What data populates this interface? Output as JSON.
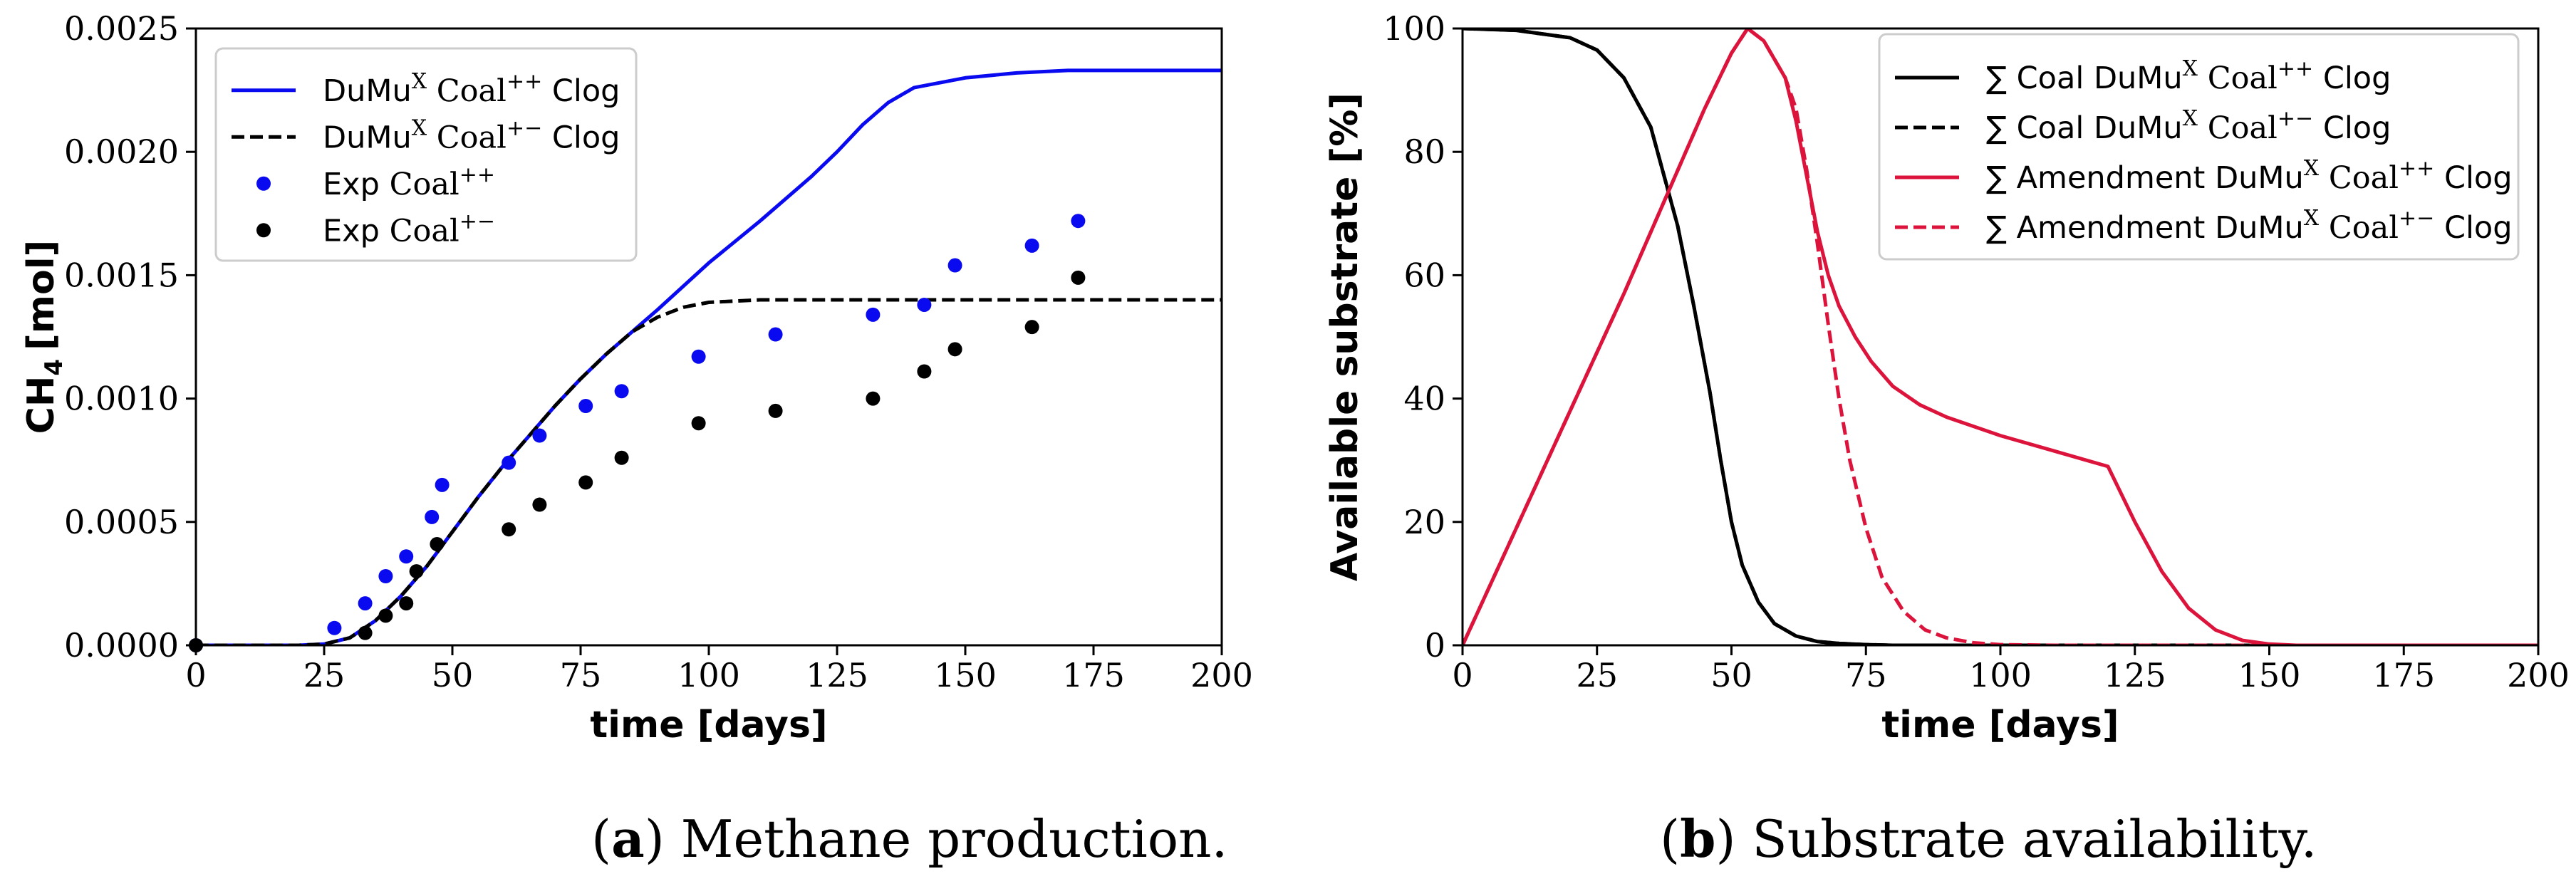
{
  "chart_data": [
    {
      "type": "line+scatter",
      "panel": "a",
      "ylabel": "CH",
      "ylabel_sub": "4",
      "ylabel_unit": "[mol]",
      "xlabel": "time [days]",
      "xlim": [
        0,
        200
      ],
      "ylim": [
        0,
        0.0025
      ],
      "xticks": [
        0,
        25,
        50,
        75,
        100,
        125,
        150,
        175,
        200
      ],
      "yticks": [
        0.0,
        0.0005,
        0.001,
        0.0015,
        0.002,
        0.0025
      ],
      "ytick_labels": [
        "0.0000",
        "0.0005",
        "0.0010",
        "0.0015",
        "0.0020",
        "0.0025"
      ],
      "legend_position": "top-left",
      "series": [
        {
          "name": "DuMu^X Coal^{++} Clog",
          "legend": [
            "DuMu",
            "X",
            " Coal",
            "++",
            " Clog"
          ],
          "kind": "line",
          "style": "solid",
          "color": "#0a0af0",
          "x": [
            0,
            20,
            25,
            30,
            35,
            40,
            45,
            50,
            55,
            60,
            65,
            70,
            75,
            80,
            85,
            90,
            100,
            110,
            120,
            125,
            130,
            135,
            140,
            150,
            160,
            170,
            180,
            190,
            200
          ],
          "y": [
            0,
            0,
            5e-06,
            3e-05,
            0.0001,
            0.0002,
            0.00032,
            0.00046,
            0.0006,
            0.00073,
            0.00085,
            0.00097,
            0.00108,
            0.00118,
            0.00127,
            0.00136,
            0.00155,
            0.00172,
            0.0019,
            0.002,
            0.00211,
            0.0022,
            0.00226,
            0.0023,
            0.00232,
            0.00233,
            0.00233,
            0.00233,
            0.00233
          ]
        },
        {
          "name": "DuMu^X Coal^{+-} Clog",
          "legend": [
            "DuMu",
            "X",
            " Coal",
            "+−",
            " Clog"
          ],
          "kind": "line",
          "style": "dashed",
          "color": "#000000",
          "x": [
            0,
            20,
            25,
            30,
            35,
            40,
            45,
            50,
            55,
            60,
            65,
            70,
            75,
            80,
            85,
            90,
            95,
            100,
            110,
            120,
            140,
            160,
            180,
            200
          ],
          "y": [
            0,
            0,
            5e-06,
            3e-05,
            0.0001,
            0.0002,
            0.00032,
            0.00046,
            0.0006,
            0.00073,
            0.00085,
            0.00097,
            0.00108,
            0.00118,
            0.00127,
            0.00133,
            0.00137,
            0.00139,
            0.0014,
            0.0014,
            0.0014,
            0.0014,
            0.0014,
            0.0014
          ]
        },
        {
          "name": "Exp Coal^{++}",
          "legend": [
            "Exp",
            "",
            " Coal",
            "++",
            ""
          ],
          "kind": "scatter",
          "color": "#0a0af0",
          "x": [
            0,
            27,
            33,
            37,
            41,
            46,
            48,
            61,
            67,
            76,
            83,
            98,
            113,
            132,
            142,
            148,
            163,
            172
          ],
          "y": [
            0,
            7e-05,
            0.00017,
            0.00028,
            0.00036,
            0.00052,
            0.00065,
            0.00074,
            0.00085,
            0.00097,
            0.00103,
            0.00117,
            0.00126,
            0.00134,
            0.00138,
            0.00154,
            0.00162,
            0.00172
          ]
        },
        {
          "name": "Exp Coal^{+-}",
          "legend": [
            "Exp",
            "",
            " Coal",
            "+−",
            ""
          ],
          "kind": "scatter",
          "color": "#000000",
          "x": [
            0,
            33,
            37,
            41,
            43,
            47,
            61,
            67,
            76,
            83,
            98,
            113,
            132,
            142,
            148,
            163,
            172
          ],
          "y": [
            0,
            5e-05,
            0.00012,
            0.00017,
            0.0003,
            0.00041,
            0.00047,
            0.00057,
            0.00066,
            0.00076,
            0.0009,
            0.00095,
            0.001,
            0.00111,
            0.0012,
            0.00129,
            0.00149
          ]
        }
      ]
    },
    {
      "type": "line",
      "panel": "b",
      "ylabel": "Available substrate [%]",
      "xlabel": "time [days]",
      "xlim": [
        0,
        200
      ],
      "ylim": [
        0,
        100
      ],
      "xticks": [
        0,
        25,
        50,
        75,
        100,
        125,
        150,
        175,
        200
      ],
      "yticks": [
        0,
        20,
        40,
        60,
        80,
        100
      ],
      "ytick_labels": [
        "0",
        "20",
        "40",
        "60",
        "80",
        "100"
      ],
      "legend_position": "top-right",
      "series": [
        {
          "name": "∑ Coal DuMu^X Coal^{++} Clog",
          "legend": [
            "∑ Coal DuMu",
            "X",
            " Coal",
            "++",
            " Clog"
          ],
          "kind": "line",
          "style": "solid",
          "color": "#000000",
          "x": [
            0,
            10,
            20,
            25,
            30,
            35,
            40,
            43,
            46,
            48,
            50,
            52,
            55,
            58,
            62,
            66,
            70,
            75,
            80,
            90,
            100,
            200
          ],
          "y": [
            100,
            99.7,
            98.5,
            96.5,
            92,
            84,
            68,
            55,
            41,
            30,
            20,
            13,
            7,
            3.5,
            1.5,
            0.6,
            0.3,
            0.1,
            0,
            0,
            0,
            0
          ]
        },
        {
          "name": "∑ Coal DuMu^X Coal^{+-} Clog",
          "legend": [
            "∑ Coal DuMu",
            "X",
            " Coal",
            "+−",
            " Clog"
          ],
          "kind": "line",
          "style": "dashed",
          "color": "#000000",
          "x": [
            0,
            10,
            20,
            25,
            30,
            35,
            40,
            43,
            46,
            48,
            50,
            52,
            55,
            58,
            62,
            66,
            70,
            75,
            80,
            90,
            100,
            200
          ],
          "y": [
            100,
            99.7,
            98.5,
            96.5,
            92,
            84,
            68,
            55,
            41,
            30,
            20,
            13,
            7,
            3.5,
            1.5,
            0.6,
            0.3,
            0.1,
            0,
            0,
            0,
            0
          ]
        },
        {
          "name": "∑ Amendment DuMu^X Coal^{++} Clog",
          "legend": [
            "∑ Amendment DuMu",
            "X",
            " Coal",
            "++",
            " Clog"
          ],
          "kind": "line",
          "style": "solid",
          "color": "#dc143c",
          "x": [
            0,
            10,
            20,
            30,
            40,
            45,
            50,
            53,
            56,
            60,
            62,
            64,
            66,
            68,
            70,
            73,
            76,
            80,
            85,
            90,
            100,
            110,
            120,
            125,
            130,
            135,
            140,
            145,
            150,
            155,
            160,
            200
          ],
          "y": [
            0,
            19,
            38,
            57,
            77,
            87,
            96,
            100,
            98,
            92,
            85,
            76,
            67,
            60,
            55,
            50,
            46,
            42,
            39,
            37,
            34,
            31.5,
            29,
            20,
            12,
            6,
            2.5,
            0.8,
            0.2,
            0,
            0,
            0
          ]
        },
        {
          "name": "∑ Amendment DuMu^X Coal^{+-} Clog",
          "legend": [
            "∑ Amendment DuMu",
            "X",
            " Coal",
            "+−",
            " Clog"
          ],
          "kind": "line",
          "style": "dashed",
          "color": "#dc143c",
          "x": [
            0,
            10,
            20,
            30,
            40,
            45,
            50,
            53,
            56,
            60,
            62,
            64,
            66,
            68,
            70,
            72,
            75,
            78,
            82,
            86,
            90,
            95,
            100,
            110,
            200
          ],
          "y": [
            0,
            19,
            38,
            57,
            77,
            87,
            96,
            100,
            98,
            92,
            87,
            77,
            65,
            52,
            40,
            30,
            19,
            11,
            5.5,
            2.5,
            1.2,
            0.4,
            0.1,
            0,
            0
          ]
        }
      ]
    }
  ],
  "captions": [
    {
      "letter": "a",
      "text": "Methane production."
    },
    {
      "letter": "b",
      "text": "Substrate availability."
    }
  ]
}
